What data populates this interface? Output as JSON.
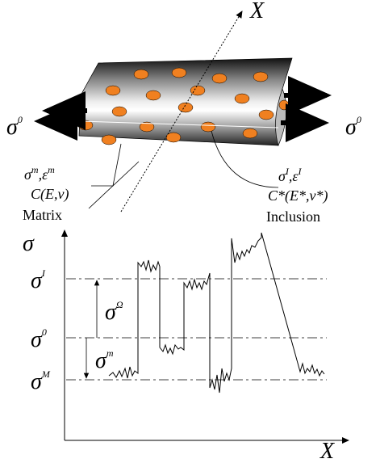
{
  "top": {
    "axis_label": "X",
    "stress_left": {
      "base": "σ",
      "sup": "0"
    },
    "stress_right": {
      "base": "σ",
      "sup": "0"
    },
    "matrix": {
      "fields": {
        "s": "σ",
        "s_sup": "m",
        "sep": ",",
        "e": "ε",
        "e_sup": "m"
      },
      "stiffness": "C(E,ν)",
      "label": "Matrix"
    },
    "inclusion": {
      "fields": {
        "s": "σ",
        "s_sup": "I",
        "sep": ",",
        "e": "ε",
        "e_sup": "I"
      },
      "stiffness": "C*(E*,ν*)",
      "label": "Inclusion"
    }
  },
  "plot": {
    "y_label": "σ",
    "x_label": "X",
    "levels": [
      {
        "base": "σ",
        "sup": "I"
      },
      {
        "base": "σ",
        "sup": "0"
      },
      {
        "base": "σ",
        "sup": "M"
      }
    ],
    "diff_upper": {
      "base": "σ",
      "sup": "Ω"
    },
    "diff_lower": {
      "base": "σ",
      "sup": "m"
    }
  }
}
